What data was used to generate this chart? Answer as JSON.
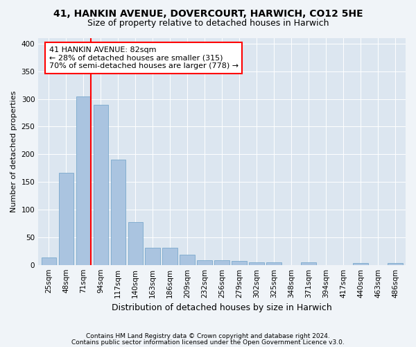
{
  "title1": "41, HANKIN AVENUE, DOVERCOURT, HARWICH, CO12 5HE",
  "title2": "Size of property relative to detached houses in Harwich",
  "xlabel": "Distribution of detached houses by size in Harwich",
  "ylabel": "Number of detached properties",
  "footnote1": "Contains HM Land Registry data © Crown copyright and database right 2024.",
  "footnote2": "Contains public sector information licensed under the Open Government Licence v3.0.",
  "categories": [
    "25sqm",
    "48sqm",
    "71sqm",
    "94sqm",
    "117sqm",
    "140sqm",
    "163sqm",
    "186sqm",
    "209sqm",
    "232sqm",
    "256sqm",
    "279sqm",
    "302sqm",
    "325sqm",
    "348sqm",
    "371sqm",
    "394sqm",
    "417sqm",
    "440sqm",
    "463sqm",
    "486sqm"
  ],
  "values": [
    14,
    167,
    305,
    289,
    190,
    77,
    31,
    31,
    18,
    9,
    8,
    7,
    5,
    5,
    0,
    5,
    0,
    0,
    3,
    0,
    3
  ],
  "bar_color": "#aac4e0",
  "bar_edge_color": "#7aa8cc",
  "vline_color": "red",
  "vline_x_index": 2,
  "bar_width": 0.85,
  "annotation_text": "41 HANKIN AVENUE: 82sqm\n← 28% of detached houses are smaller (315)\n70% of semi-detached houses are larger (778) →",
  "ylim": [
    0,
    410
  ],
  "yticks": [
    0,
    50,
    100,
    150,
    200,
    250,
    300,
    350,
    400
  ],
  "background_color": "#dce6f0",
  "fig_background": "#f0f4f8",
  "grid_color": "#ffffff",
  "title1_fontsize": 10,
  "title2_fontsize": 9,
  "xlabel_fontsize": 9,
  "ylabel_fontsize": 8,
  "tick_fontsize": 7.5,
  "annotation_fontsize": 8,
  "footnote_fontsize": 6.5
}
